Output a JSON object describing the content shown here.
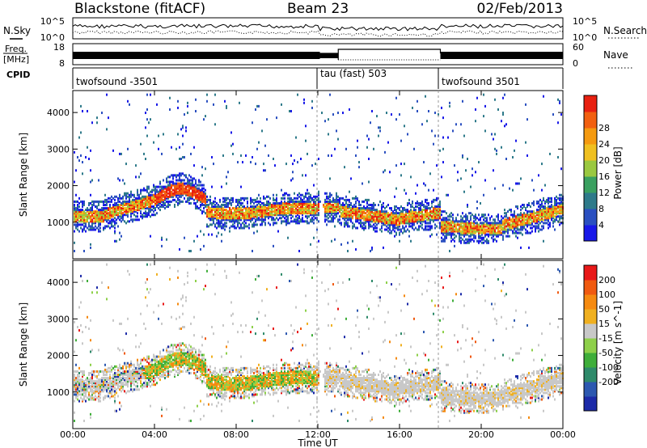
{
  "header": {
    "station": "Blackstone (fitACF)",
    "beam": "Beam 23",
    "date": "02/Feb/2013"
  },
  "noise_panel": {
    "left_label": "N.Sky",
    "left_ticks": [
      "10^5",
      "10^0"
    ],
    "right_label": "N.Search",
    "right_ticks": [
      "10^5",
      "10^0"
    ]
  },
  "freq_panel": {
    "left_label_1": "Freq.",
    "left_label_2": "[MHz]",
    "left_ticks": [
      "18",
      "8"
    ],
    "right_label": "Nave",
    "right_ticks": [
      "60",
      "0"
    ]
  },
  "cpid_panel": {
    "label": "CPID",
    "segments": [
      {
        "text": "twofsound -3501",
        "start_hour": 0
      },
      {
        "text": "tau (fast) 503",
        "start_hour": 12
      },
      {
        "text": "twofsound 3501",
        "start_hour": 18
      }
    ]
  },
  "chart_data": [
    {
      "type": "heatmap",
      "name": "power",
      "xlabel": "",
      "ylabel": "Slant Range [km]",
      "xlim": [
        0,
        24
      ],
      "ylim": [
        0,
        4600
      ],
      "yticks": [
        1000,
        2000,
        3000,
        4000
      ],
      "colorbar": {
        "label": "Power [dB]",
        "ticks": [
          4,
          8,
          12,
          16,
          20,
          24,
          28
        ],
        "colors": [
          "#1818e8",
          "#2a4fc0",
          "#2e7a8a",
          "#3aa060",
          "#9ac840",
          "#f0c020",
          "#f59a10",
          "#f26010",
          "#e82010"
        ]
      }
    },
    {
      "type": "heatmap",
      "name": "velocity",
      "xlabel": "Time UT",
      "ylabel": "Slant Range [km]",
      "xlim": [
        0,
        24
      ],
      "ylim": [
        0,
        4600
      ],
      "yticks": [
        1000,
        2000,
        3000,
        4000
      ],
      "xticks": [
        "00:00",
        "04:00",
        "08:00",
        "12:00",
        "16:00",
        "20:00",
        "00:00"
      ],
      "colorbar": {
        "label": "Velocity [m s^-1]",
        "ticks": [
          "200",
          "100",
          "50",
          "15",
          "-15",
          "-50",
          "-100",
          "-200"
        ],
        "colors": [
          "#1c2aa8",
          "#2c58b0",
          "#2e8a6a",
          "#3fae3a",
          "#8ed04a",
          "#c8c8c8",
          "#f0b020",
          "#f58a10",
          "#f05a10",
          "#e81818"
        ]
      }
    }
  ]
}
